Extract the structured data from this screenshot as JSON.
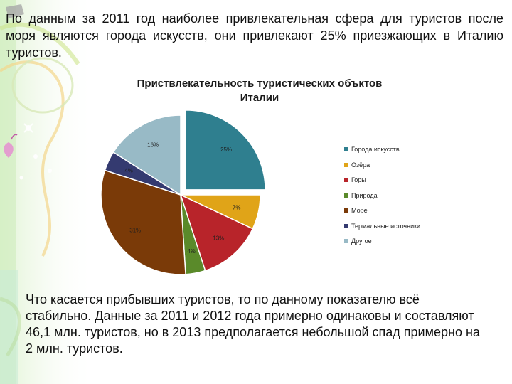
{
  "slide": {
    "top_paragraph": "По данным за 2011 год наиболее привлекательная сфера для туристов после моря являются города искусств, они привлекают 25% приезжающих в Италию туристов.",
    "bottom_paragraph": "Что касается прибывших туристов, то по данному показателю всё стабильно. Данные за 2011 и 2012 года примерно одинаковы и составляют 46,1 млн. туристов, но в 2013 предполагается небольшой спад примерно на 2 млн. туристов."
  },
  "chart_data": {
    "type": "pie",
    "title_line1": "Приствлекательность туристических объктов",
    "title_line2": "Италии",
    "legend_position": "right",
    "slices": [
      {
        "name": "Города искусств",
        "value": 25,
        "label": "25%",
        "color": "#2f7f8f",
        "exploded": true
      },
      {
        "name": "Озёра",
        "value": 7,
        "label": "7%",
        "color": "#e0a418",
        "exploded": false
      },
      {
        "name": "Горы",
        "value": 13,
        "label": "13%",
        "color": "#b8242a",
        "exploded": false
      },
      {
        "name": "Природа",
        "value": 4,
        "label": "4%",
        "color": "#5a8a2a",
        "exploded": false
      },
      {
        "name": "Море",
        "value": 31,
        "label": "31%",
        "color": "#7a3a08",
        "exploded": false
      },
      {
        "name": "Термальные источники",
        "value": 4,
        "label": "4%",
        "color": "#343a70",
        "exploded": false
      },
      {
        "name": "Другое",
        "value": 16,
        "label": "16%",
        "color": "#98bac6",
        "exploded": false
      }
    ]
  }
}
